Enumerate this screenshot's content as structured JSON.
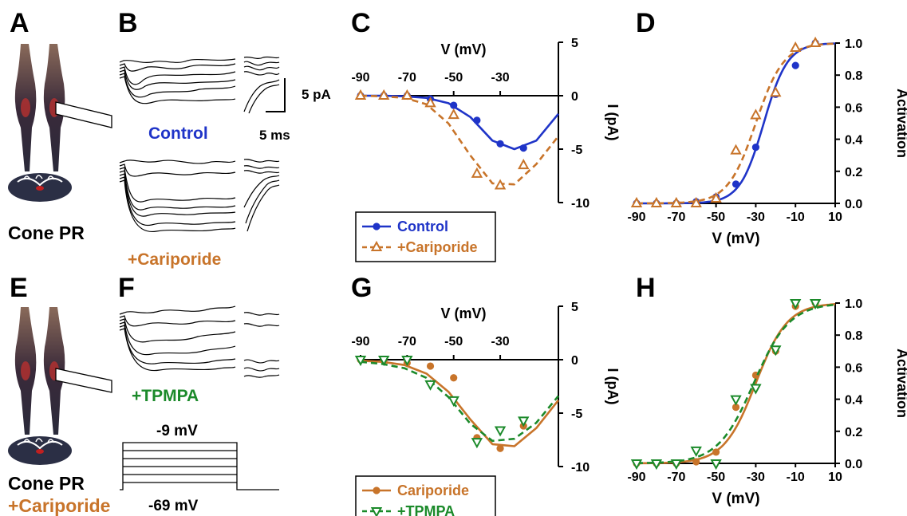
{
  "panel_labels": {
    "A": "A",
    "B": "B",
    "C": "C",
    "D": "D",
    "E": "E",
    "F": "F",
    "G": "G",
    "H": "H"
  },
  "cells": {
    "top_label": "Cone PR",
    "bottom_label": "Cone PR",
    "bottom_drug": "+Cariporide"
  },
  "traces": {
    "scale_current": "5 pA",
    "scale_time": "5 ms",
    "control_label": "Control",
    "cariporide_label": "+Cariporide",
    "tpmpa_label": "+TPMPA",
    "step_top": "-9 mV",
    "step_bottom": "-69 mV"
  },
  "colors": {
    "control": "#1f34c8",
    "cariporide": "#c8742a",
    "tpmpa": "#1b8a2a",
    "axis": "#000000"
  },
  "chart_data": [
    {
      "id": "C",
      "type": "line",
      "xlabel": "V (mV)",
      "ylabel": "I (pA)",
      "xlim": [
        -90,
        -5
      ],
      "ylim": [
        -10,
        5
      ],
      "xticks": [
        -90,
        -70,
        -50,
        -30
      ],
      "yticks": [
        5,
        0,
        -5,
        -10
      ],
      "legend_position": "bottom-left",
      "series": [
        {
          "name": "Control",
          "marker": "filled-circle",
          "line": "solid",
          "color": "#1f34c8",
          "x": [
            -90,
            -80,
            -70,
            -60,
            -50,
            -40,
            -30,
            -20
          ],
          "y": [
            0,
            0,
            0,
            -0.3,
            -0.9,
            -2.3,
            -4.5,
            -4.9
          ],
          "fit_y": [
            0,
            0,
            -0.05,
            -0.2,
            -0.7,
            -2.0,
            -4.2,
            -5.0,
            -4.2,
            -1.7
          ]
        },
        {
          "name": "+Cariporide",
          "marker": "open-triangle-up",
          "line": "dashed",
          "color": "#c8742a",
          "x": [
            -90,
            -80,
            -70,
            -60,
            -50,
            -40,
            -30,
            -20
          ],
          "y": [
            0,
            0,
            0,
            -0.7,
            -1.8,
            -7.3,
            -8.4,
            -6.5
          ],
          "fit_y": [
            0,
            -0.05,
            -0.2,
            -0.8,
            -2.6,
            -5.6,
            -8.2,
            -8.3,
            -6.4,
            -3.8
          ]
        }
      ]
    },
    {
      "id": "D",
      "type": "line",
      "xlabel": "V (mV)",
      "ylabel": "Activation",
      "xlim": [
        -90,
        10
      ],
      "ylim": [
        0,
        1
      ],
      "xticks": [
        -90,
        -70,
        -50,
        -30,
        -10,
        10
      ],
      "yticks": [
        0,
        0.2,
        0.4,
        0.6,
        0.8,
        1.0
      ],
      "series": [
        {
          "name": "Control",
          "marker": "filled-circle",
          "line": "solid",
          "color": "#1f34c8",
          "x": [
            -90,
            -80,
            -70,
            -60,
            -50,
            -40,
            -30,
            -20,
            -10,
            0
          ],
          "y": [
            0,
            0,
            0,
            0.01,
            0.04,
            0.12,
            0.35,
            0.68,
            0.86,
            1.0
          ],
          "fit_v_half": -26,
          "fit_k": 6
        },
        {
          "name": "+Cariporide",
          "marker": "open-triangle-up",
          "line": "dashed",
          "color": "#c8742a",
          "x": [
            -90,
            -80,
            -70,
            -60,
            -50,
            -40,
            -30,
            -20,
            -10,
            0
          ],
          "y": [
            0,
            0,
            0,
            0,
            0.03,
            0.33,
            0.55,
            0.69,
            0.97,
            1.0
          ],
          "fit_v_half": -30,
          "fit_k": 7
        }
      ]
    },
    {
      "id": "G",
      "type": "line",
      "xlabel": "V (mV)",
      "ylabel": "I (pA)",
      "xlim": [
        -90,
        -5
      ],
      "ylim": [
        -10,
        5
      ],
      "xticks": [
        -90,
        -70,
        -50,
        -30
      ],
      "yticks": [
        5,
        0,
        -5,
        -10
      ],
      "legend_position": "bottom-left",
      "series": [
        {
          "name": "Cariporide",
          "marker": "filled-circle",
          "line": "solid",
          "color": "#c8742a",
          "x": [
            -90,
            -80,
            -70,
            -60,
            -50,
            -40,
            -30,
            -20
          ],
          "y": [
            0,
            -0.1,
            -0.3,
            -0.6,
            -1.7,
            -7.3,
            -8.3,
            -6.2
          ],
          "fit_y": [
            -0.1,
            -0.2,
            -0.5,
            -1.3,
            -3.0,
            -5.6,
            -7.9,
            -8.1,
            -6.4,
            -3.8
          ]
        },
        {
          "name": "+TPMPA",
          "marker": "open-triangle-down",
          "line": "dashed",
          "color": "#1b8a2a",
          "x": [
            -90,
            -80,
            -70,
            -60,
            -50,
            -40,
            -30,
            -20
          ],
          "y": [
            0,
            0,
            0,
            -2.3,
            -3.8,
            -7.7,
            -6.6,
            -5.7
          ],
          "fit_y": [
            -0.2,
            -0.4,
            -0.8,
            -1.7,
            -3.5,
            -6.0,
            -7.6,
            -7.4,
            -5.9,
            -3.4
          ]
        }
      ]
    },
    {
      "id": "H",
      "type": "line",
      "xlabel": "V (mV)",
      "ylabel": "Activation",
      "xlim": [
        -90,
        10
      ],
      "ylim": [
        0,
        1
      ],
      "xticks": [
        -90,
        -70,
        -50,
        -30,
        -10,
        10
      ],
      "yticks": [
        0,
        0.2,
        0.4,
        0.6,
        0.8,
        1.0
      ],
      "series": [
        {
          "name": "Cariporide",
          "marker": "filled-circle",
          "line": "solid",
          "color": "#c8742a",
          "x": [
            -90,
            -80,
            -70,
            -60,
            -50,
            -40,
            -30,
            -20,
            -10,
            0
          ],
          "y": [
            0,
            0,
            0,
            0.01,
            0.07,
            0.35,
            0.55,
            0.7,
            0.98,
            1.0
          ],
          "fit_v_half": -30,
          "fit_k": 8
        },
        {
          "name": "+TPMPA",
          "marker": "open-triangle-down",
          "line": "dashed",
          "color": "#1b8a2a",
          "x": [
            -90,
            -80,
            -70,
            -60,
            -50,
            -40,
            -30,
            -20,
            -10,
            0
          ],
          "y": [
            0,
            0,
            0,
            0.08,
            0.0,
            0.4,
            0.47,
            0.71,
            1.0,
            1.0
          ],
          "fit_v_half": -31,
          "fit_k": 9
        }
      ]
    }
  ]
}
